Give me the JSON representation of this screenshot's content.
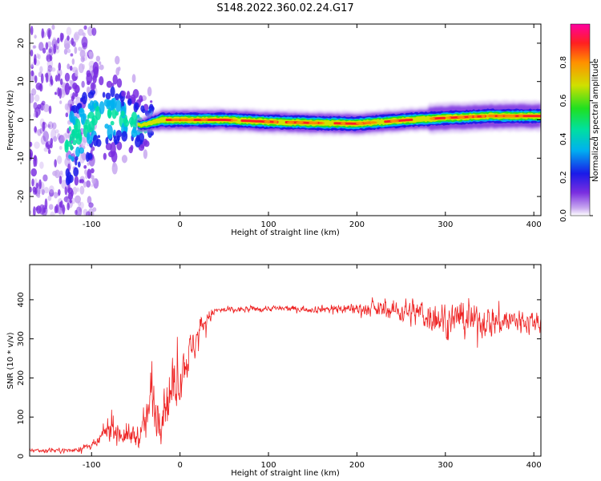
{
  "figure": {
    "title": "S148.2022.360.02.24.G17"
  },
  "chart_data": [
    {
      "type": "heatmap",
      "title": "S148.2022.360.02.24.G17",
      "xlabel": "Height of straight line (km)",
      "ylabel": "Frequency (Hz)",
      "xlim": [
        -170,
        408
      ],
      "ylim": [
        -25,
        25
      ],
      "xticks": [
        -100,
        0,
        100,
        200,
        300,
        400
      ],
      "yticks": [
        -20,
        -10,
        0,
        10,
        20
      ],
      "colorbar": {
        "label": "Normalized spectral amplitude",
        "range": [
          0,
          1
        ],
        "ticks": [
          0.0,
          0.2,
          0.4,
          0.6,
          0.8
        ],
        "tick_labels": [
          "0.0",
          "0.2",
          "0.4",
          "0.6",
          "0.8"
        ],
        "colormap": [
          "#ffffff",
          "#c8a8f0",
          "#7a2ee0",
          "#1a1ae8",
          "#00b0f0",
          "#00e0a0",
          "#20e020",
          "#d0e000",
          "#ff9000",
          "#ff2020",
          "#ff00a0"
        ]
      },
      "ridge_center_hz": [
        [
          -130,
          -6
        ],
        [
          -110,
          -3
        ],
        [
          -95,
          1
        ],
        [
          -80,
          0.5
        ],
        [
          -60,
          0
        ],
        [
          -45,
          -1.5
        ],
        [
          -20,
          0
        ],
        [
          0,
          0
        ],
        [
          50,
          0
        ],
        [
          100,
          -0.5
        ],
        [
          150,
          -0.8
        ],
        [
          200,
          -1
        ],
        [
          230,
          -0.5
        ],
        [
          260,
          0
        ],
        [
          300,
          0.5
        ],
        [
          350,
          1
        ],
        [
          408,
          1
        ]
      ]
    },
    {
      "type": "line",
      "xlabel": "Height of straight line (km)",
      "ylabel": "SNR (10 * v/v)",
      "xlim": [
        -170,
        408
      ],
      "ylim": [
        0,
        490
      ],
      "xticks": [
        -100,
        0,
        100,
        200,
        300,
        400
      ],
      "yticks": [
        0,
        100,
        200,
        300,
        400
      ],
      "color": "#ee2222",
      "envelope": [
        {
          "x": -170,
          "mean": 15,
          "noise": 8
        },
        {
          "x": -120,
          "mean": 15,
          "noise": 8
        },
        {
          "x": -95,
          "mean": 30,
          "noise": 15
        },
        {
          "x": -80,
          "mean": 75,
          "noise": 45
        },
        {
          "x": -60,
          "mean": 50,
          "noise": 40
        },
        {
          "x": -45,
          "mean": 55,
          "noise": 40
        },
        {
          "x": -38,
          "mean": 90,
          "noise": 70
        },
        {
          "x": -32,
          "mean": 170,
          "noise": 120
        },
        {
          "x": -25,
          "mean": 110,
          "noise": 90
        },
        {
          "x": -15,
          "mean": 150,
          "noise": 100
        },
        {
          "x": -5,
          "mean": 180,
          "noise": 90
        },
        {
          "x": 5,
          "mean": 240,
          "noise": 80
        },
        {
          "x": 15,
          "mean": 280,
          "noise": 60
        },
        {
          "x": 25,
          "mean": 340,
          "noise": 40
        },
        {
          "x": 40,
          "mean": 372,
          "noise": 12
        },
        {
          "x": 100,
          "mean": 378,
          "noise": 10
        },
        {
          "x": 150,
          "mean": 376,
          "noise": 12
        },
        {
          "x": 190,
          "mean": 378,
          "noise": 20
        },
        {
          "x": 230,
          "mean": 375,
          "noise": 30
        },
        {
          "x": 260,
          "mean": 370,
          "noise": 45
        },
        {
          "x": 300,
          "mean": 350,
          "noise": 60
        },
        {
          "x": 360,
          "mean": 345,
          "noise": 55
        },
        {
          "x": 408,
          "mean": 345,
          "noise": 40
        }
      ]
    }
  ]
}
